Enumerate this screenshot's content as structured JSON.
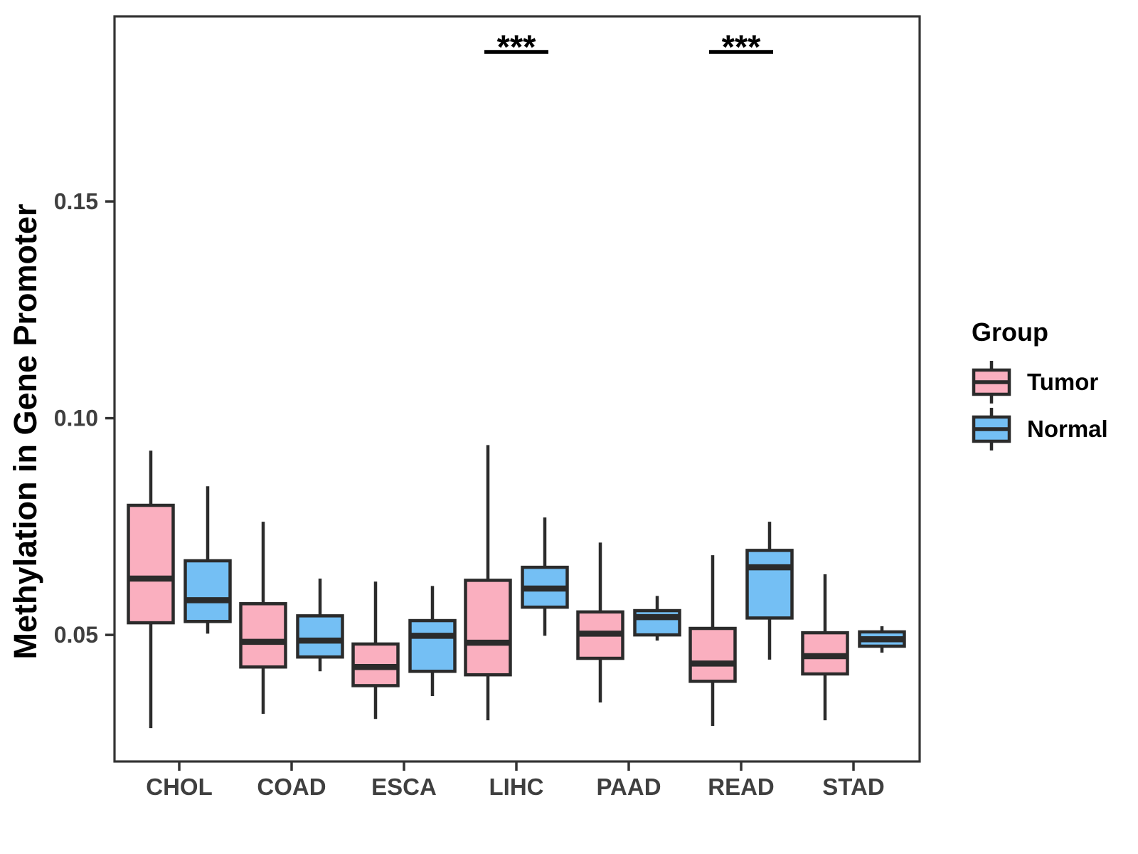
{
  "chart_data": {
    "type": "grouped_boxplot",
    "title": "",
    "xlabel": "",
    "ylabel": "Methylation in Gene Promoter",
    "categories": [
      "CHOL",
      "COAD",
      "ESCA",
      "LIHC",
      "PAAD",
      "READ",
      "STAD"
    ],
    "ylim": [
      0.0208,
      0.1927
    ],
    "y_ticks": [
      0.05,
      0.1,
      0.15
    ],
    "y_tick_labels": [
      "0.05",
      "0.10",
      "0.15"
    ],
    "grid": "off",
    "legend": {
      "title": "Group",
      "position": "right",
      "entries": [
        {
          "label": "Tumor",
          "color": "#FAAFBF"
        },
        {
          "label": "Normal",
          "color": "#74BFF4"
        }
      ]
    },
    "series": [
      {
        "name": "Tumor",
        "color": "#FAAFBF",
        "boxes": [
          {
            "category": "CHOL",
            "low": 0.0285,
            "q1": 0.0528,
            "median": 0.063,
            "q3": 0.0799,
            "high": 0.0925
          },
          {
            "category": "COAD",
            "low": 0.0318,
            "q1": 0.0426,
            "median": 0.0484,
            "q3": 0.0572,
            "high": 0.0761
          },
          {
            "category": "ESCA",
            "low": 0.0306,
            "q1": 0.0383,
            "median": 0.0426,
            "q3": 0.0479,
            "high": 0.0623
          },
          {
            "category": "LIHC",
            "low": 0.0303,
            "q1": 0.0408,
            "median": 0.0482,
            "q3": 0.0626,
            "high": 0.0938
          },
          {
            "category": "PAAD",
            "low": 0.0344,
            "q1": 0.0446,
            "median": 0.0503,
            "q3": 0.0553,
            "high": 0.0713
          },
          {
            "category": "READ",
            "low": 0.029,
            "q1": 0.0393,
            "median": 0.0434,
            "q3": 0.0515,
            "high": 0.0684
          },
          {
            "category": "STAD",
            "low": 0.0303,
            "q1": 0.041,
            "median": 0.0451,
            "q3": 0.0505,
            "high": 0.064
          }
        ]
      },
      {
        "name": "Normal",
        "color": "#74BFF4",
        "boxes": [
          {
            "category": "CHOL",
            "low": 0.0503,
            "q1": 0.0531,
            "median": 0.058,
            "q3": 0.0671,
            "high": 0.0843
          },
          {
            "category": "COAD",
            "low": 0.0416,
            "q1": 0.0449,
            "median": 0.0487,
            "q3": 0.0544,
            "high": 0.063
          },
          {
            "category": "ESCA",
            "low": 0.0359,
            "q1": 0.0416,
            "median": 0.0498,
            "q3": 0.0533,
            "high": 0.0613
          },
          {
            "category": "LIHC",
            "low": 0.0498,
            "q1": 0.0564,
            "median": 0.0607,
            "q3": 0.0656,
            "high": 0.0771
          },
          {
            "category": "PAAD",
            "low": 0.0487,
            "q1": 0.05,
            "median": 0.0541,
            "q3": 0.0556,
            "high": 0.059
          },
          {
            "category": "READ",
            "low": 0.0443,
            "q1": 0.0539,
            "median": 0.0656,
            "q3": 0.0695,
            "high": 0.0761
          },
          {
            "category": "STAD",
            "low": 0.0459,
            "q1": 0.0474,
            "median": 0.049,
            "q3": 0.0507,
            "high": 0.052
          }
        ]
      }
    ],
    "significance": [
      {
        "category": "LIHC",
        "label": "***"
      },
      {
        "category": "READ",
        "label": "***"
      }
    ]
  },
  "style": {
    "box_border": "#2B2B2B",
    "axis_color": "#333333",
    "tick_label_color": "#3F3F3F",
    "text_color": "#000000",
    "background": "#FFFFFF"
  }
}
